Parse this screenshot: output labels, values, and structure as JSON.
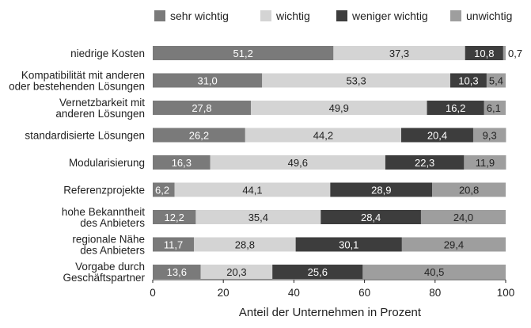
{
  "chart_data": {
    "type": "bar",
    "orientation": "horizontal",
    "stacked": true,
    "title": "",
    "xlabel": "Anteil der Unternehmen in Prozent",
    "ylabel": "",
    "xlim": [
      0,
      100
    ],
    "xticks": [
      0,
      20,
      40,
      60,
      80,
      100
    ],
    "grid": false,
    "legend_position": "top",
    "categories": [
      [
        "niedrige Kosten"
      ],
      [
        "Kompatibilität mit anderen",
        "oder bestehenden Lösungen"
      ],
      [
        "Vernetzbarkeit mit",
        "anderen Lösungen"
      ],
      [
        "standardisierte Lösungen"
      ],
      [
        "Modularisierung"
      ],
      [
        "Referenzprojekte"
      ],
      [
        "hohe Bekanntheit",
        "des Anbieters"
      ],
      [
        "regionale Nähe",
        "des Anbieters"
      ],
      [
        "Vorgabe durch",
        "Geschäftspartner"
      ]
    ],
    "series": [
      {
        "name": "sehr wichtig",
        "color": "#7a7a7a",
        "label_color": "#ffffff",
        "values": [
          51.2,
          31.0,
          27.8,
          26.2,
          16.3,
          6.2,
          12.2,
          11.7,
          13.6
        ],
        "labels": [
          "51,2",
          "31,0",
          "27,8",
          "26,2",
          "16,3",
          "6,2",
          "12,2",
          "11,7",
          "13,6"
        ]
      },
      {
        "name": "wichtig",
        "color": "#d4d4d4",
        "label_color": "#222222",
        "values": [
          37.3,
          53.3,
          49.9,
          44.2,
          49.6,
          44.1,
          35.4,
          28.8,
          20.3
        ],
        "labels": [
          "37,3",
          "53,3",
          "49,9",
          "44,2",
          "49,6",
          "44,1",
          "35,4",
          "28,8",
          "20,3"
        ]
      },
      {
        "name": "weniger wichtig",
        "color": "#3d3d3d",
        "label_color": "#ffffff",
        "values": [
          10.8,
          10.3,
          16.2,
          20.4,
          22.3,
          28.9,
          28.4,
          30.1,
          25.6
        ],
        "labels": [
          "10,8",
          "10,3",
          "16,2",
          "20,4",
          "22,3",
          "28,9",
          "28,4",
          "30,1",
          "25,6"
        ]
      },
      {
        "name": "unwichtig",
        "color": "#9e9e9e",
        "label_color": "#222222",
        "values": [
          0.7,
          5.4,
          6.1,
          9.3,
          11.9,
          20.8,
          24.0,
          29.4,
          40.5
        ],
        "labels": [
          "0,7",
          "5,4",
          "6,1",
          "9,3",
          "11,9",
          "20,8",
          "24,0",
          "29,4",
          "40,5"
        ]
      }
    ]
  }
}
